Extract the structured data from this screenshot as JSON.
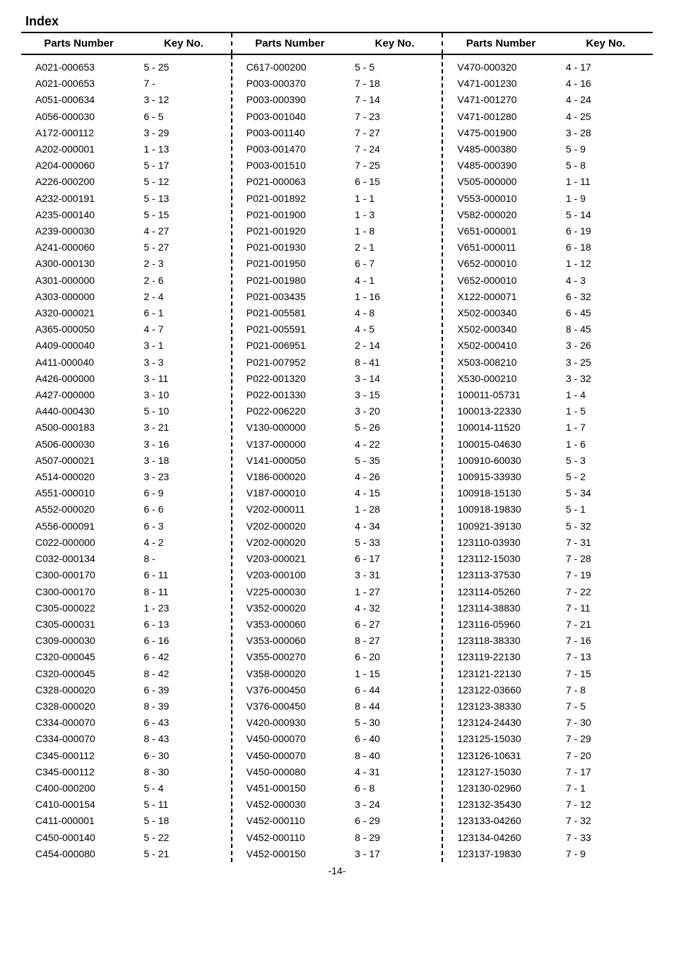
{
  "title": "Index",
  "headers": {
    "parts": "Parts Number",
    "key": "Key No."
  },
  "footer": "-14-",
  "columns": [
    [
      {
        "p": "A021-000653",
        "k": "5 - 25"
      },
      {
        "p": "A021-000653",
        "k": "7 -"
      },
      {
        "p": "A051-000634",
        "k": "3 - 12"
      },
      {
        "p": "A056-000030",
        "k": "6 - 5"
      },
      {
        "p": "A172-000112",
        "k": "3 - 29"
      },
      {
        "p": "A202-000001",
        "k": "1 - 13"
      },
      {
        "p": "A204-000060",
        "k": "5 - 17"
      },
      {
        "p": "A226-000200",
        "k": "5 - 12"
      },
      {
        "p": "A232-000191",
        "k": "5 - 13"
      },
      {
        "p": "A235-000140",
        "k": "5 - 15"
      },
      {
        "p": "A239-000030",
        "k": "4 - 27"
      },
      {
        "p": "A241-000060",
        "k": "5 - 27"
      },
      {
        "p": "A300-000130",
        "k": "2 - 3"
      },
      {
        "p": "A301-000000",
        "k": "2 - 6"
      },
      {
        "p": "A303-000000",
        "k": "2 - 4"
      },
      {
        "p": "A320-000021",
        "k": "6 - 1"
      },
      {
        "p": "A365-000050",
        "k": "4 - 7"
      },
      {
        "p": "A409-000040",
        "k": "3 - 1"
      },
      {
        "p": "A411-000040",
        "k": "3 - 3"
      },
      {
        "p": "A426-000000",
        "k": "3 - 11"
      },
      {
        "p": "A427-000000",
        "k": "3 - 10"
      },
      {
        "p": "A440-000430",
        "k": "5 - 10"
      },
      {
        "p": "A500-000183",
        "k": "3 - 21"
      },
      {
        "p": "A506-000030",
        "k": "3 - 16"
      },
      {
        "p": "A507-000021",
        "k": "3 - 18"
      },
      {
        "p": "A514-000020",
        "k": "3 - 23"
      },
      {
        "p": "A551-000010",
        "k": "6 - 9"
      },
      {
        "p": "A552-000020",
        "k": "6 - 6"
      },
      {
        "p": "A556-000091",
        "k": "6 - 3"
      },
      {
        "p": "C022-000000",
        "k": "4 - 2"
      },
      {
        "p": "C032-000134",
        "k": "8 -"
      },
      {
        "p": "C300-000170",
        "k": "6 - 11"
      },
      {
        "p": "C300-000170",
        "k": "8 - 11"
      },
      {
        "p": "C305-000022",
        "k": "1 - 23"
      },
      {
        "p": "C305-000031",
        "k": "6 - 13"
      },
      {
        "p": "C309-000030",
        "k": "6 - 16"
      },
      {
        "p": "C320-000045",
        "k": "6 - 42"
      },
      {
        "p": "C320-000045",
        "k": "8 - 42"
      },
      {
        "p": "C328-000020",
        "k": "6 - 39"
      },
      {
        "p": "C328-000020",
        "k": "8 - 39"
      },
      {
        "p": "C334-000070",
        "k": "6 - 43"
      },
      {
        "p": "C334-000070",
        "k": "8 - 43"
      },
      {
        "p": "C345-000112",
        "k": "6 - 30"
      },
      {
        "p": "C345-000112",
        "k": "8 - 30"
      },
      {
        "p": "C400-000200",
        "k": "5 - 4"
      },
      {
        "p": "C410-000154",
        "k": "5 - 11"
      },
      {
        "p": "C411-000001",
        "k": "5 - 18"
      },
      {
        "p": "C450-000140",
        "k": "5 - 22"
      },
      {
        "p": "C454-000080",
        "k": "5 - 21"
      }
    ],
    [
      {
        "p": "C617-000200",
        "k": "5 - 5"
      },
      {
        "p": "P003-000370",
        "k": "7 - 18"
      },
      {
        "p": "P003-000390",
        "k": "7 - 14"
      },
      {
        "p": "P003-001040",
        "k": "7 - 23"
      },
      {
        "p": "P003-001140",
        "k": "7 - 27"
      },
      {
        "p": "P003-001470",
        "k": "7 - 24"
      },
      {
        "p": "P003-001510",
        "k": "7 - 25"
      },
      {
        "p": "P021-000063",
        "k": "6 - 15"
      },
      {
        "p": "P021-001892",
        "k": "1 - 1"
      },
      {
        "p": "P021-001900",
        "k": "1 - 3"
      },
      {
        "p": "P021-001920",
        "k": "1 - 8"
      },
      {
        "p": "P021-001930",
        "k": "2 - 1"
      },
      {
        "p": "P021-001950",
        "k": "6 - 7"
      },
      {
        "p": "P021-001980",
        "k": "4 - 1"
      },
      {
        "p": "P021-003435",
        "k": "1 - 16"
      },
      {
        "p": "P021-005581",
        "k": "4 - 8"
      },
      {
        "p": "P021-005591",
        "k": "4 - 5"
      },
      {
        "p": "P021-006951",
        "k": "2 - 14"
      },
      {
        "p": "P021-007952",
        "k": "8 - 41"
      },
      {
        "p": "P022-001320",
        "k": "3 - 14"
      },
      {
        "p": "P022-001330",
        "k": "3 - 15"
      },
      {
        "p": "P022-006220",
        "k": "3 - 20"
      },
      {
        "p": "V130-000000",
        "k": "5 - 26"
      },
      {
        "p": "V137-000000",
        "k": "4 - 22"
      },
      {
        "p": "V141-000050",
        "k": "5 - 35"
      },
      {
        "p": "V186-000020",
        "k": "4 - 26"
      },
      {
        "p": "V187-000010",
        "k": "4 - 15"
      },
      {
        "p": "V202-000011",
        "k": "1 - 28"
      },
      {
        "p": "V202-000020",
        "k": "4 - 34"
      },
      {
        "p": "V202-000020",
        "k": "5 - 33"
      },
      {
        "p": "V203-000021",
        "k": "6 - 17"
      },
      {
        "p": "V203-000100",
        "k": "3 - 31"
      },
      {
        "p": "V225-000030",
        "k": "1 - 27"
      },
      {
        "p": "V352-000020",
        "k": "4 - 32"
      },
      {
        "p": "V353-000060",
        "k": "6 - 27"
      },
      {
        "p": "V353-000060",
        "k": "8 - 27"
      },
      {
        "p": "V355-000270",
        "k": "6 - 20"
      },
      {
        "p": "V358-000020",
        "k": "1 - 15"
      },
      {
        "p": "V376-000450",
        "k": "6 - 44"
      },
      {
        "p": "V376-000450",
        "k": "8 - 44"
      },
      {
        "p": "V420-000930",
        "k": "5 - 30"
      },
      {
        "p": "V450-000070",
        "k": "6 - 40"
      },
      {
        "p": "V450-000070",
        "k": "8 - 40"
      },
      {
        "p": "V450-000080",
        "k": "4 - 31"
      },
      {
        "p": "V451-000150",
        "k": "6 - 8"
      },
      {
        "p": "V452-000030",
        "k": "3 - 24"
      },
      {
        "p": "V452-000110",
        "k": "6 - 29"
      },
      {
        "p": "V452-000110",
        "k": "8 - 29"
      },
      {
        "p": "V452-000150",
        "k": "3 - 17"
      }
    ],
    [
      {
        "p": "V470-000320",
        "k": "4 - 17"
      },
      {
        "p": "V471-001230",
        "k": "4 - 16"
      },
      {
        "p": "V471-001270",
        "k": "4 - 24"
      },
      {
        "p": "V471-001280",
        "k": "4 - 25"
      },
      {
        "p": "V475-001900",
        "k": "3 - 28"
      },
      {
        "p": "V485-000380",
        "k": "5 - 9"
      },
      {
        "p": "V485-000390",
        "k": "5 - 8"
      },
      {
        "p": "V505-000000",
        "k": "1 - 11"
      },
      {
        "p": "V553-000010",
        "k": "1 - 9"
      },
      {
        "p": "V582-000020",
        "k": "5 - 14"
      },
      {
        "p": "V651-000001",
        "k": "6 - 19"
      },
      {
        "p": "V651-000011",
        "k": "6 - 18"
      },
      {
        "p": "V652-000010",
        "k": "1 - 12"
      },
      {
        "p": "V652-000010",
        "k": "4 - 3"
      },
      {
        "p": "X122-000071",
        "k": "6 - 32"
      },
      {
        "p": "X502-000340",
        "k": "6 - 45"
      },
      {
        "p": "X502-000340",
        "k": "8 - 45"
      },
      {
        "p": "X502-000410",
        "k": "3 - 26"
      },
      {
        "p": "X503-008210",
        "k": "3 - 25"
      },
      {
        "p": "X530-000210",
        "k": "3 - 32"
      },
      {
        "p": "100011-05731",
        "k": "1 - 4"
      },
      {
        "p": "100013-22330",
        "k": "1 - 5"
      },
      {
        "p": "100014-11520",
        "k": "1 - 7"
      },
      {
        "p": "100015-04630",
        "k": "1 - 6"
      },
      {
        "p": "100910-60030",
        "k": "5 - 3"
      },
      {
        "p": "100915-33930",
        "k": "5 - 2"
      },
      {
        "p": "100918-15130",
        "k": "5 - 34"
      },
      {
        "p": "100918-19830",
        "k": "5 - 1"
      },
      {
        "p": "100921-39130",
        "k": "5 - 32"
      },
      {
        "p": "123110-03930",
        "k": "7 - 31"
      },
      {
        "p": "123112-15030",
        "k": "7 - 28"
      },
      {
        "p": "123113-37530",
        "k": "7 - 19"
      },
      {
        "p": "123114-05260",
        "k": "7 - 22"
      },
      {
        "p": "123114-38830",
        "k": "7 - 11"
      },
      {
        "p": "123116-05960",
        "k": "7 - 21"
      },
      {
        "p": "123118-38330",
        "k": "7 - 16"
      },
      {
        "p": "123119-22130",
        "k": "7 - 13"
      },
      {
        "p": "123121-22130",
        "k": "7 - 15"
      },
      {
        "p": "123122-03660",
        "k": "7 - 8"
      },
      {
        "p": "123123-38330",
        "k": "7 - 5"
      },
      {
        "p": "123124-24430",
        "k": "7 - 30"
      },
      {
        "p": "123125-15030",
        "k": "7 - 29"
      },
      {
        "p": "123126-10631",
        "k": "7 - 20"
      },
      {
        "p": "123127-15030",
        "k": "7 - 17"
      },
      {
        "p": "123130-02960",
        "k": "7 - 1"
      },
      {
        "p": "123132-35430",
        "k": "7 - 12"
      },
      {
        "p": "123133-04260",
        "k": "7 - 32"
      },
      {
        "p": "123134-04260",
        "k": "7 - 33"
      },
      {
        "p": "123137-19830",
        "k": "7 - 9"
      }
    ]
  ]
}
